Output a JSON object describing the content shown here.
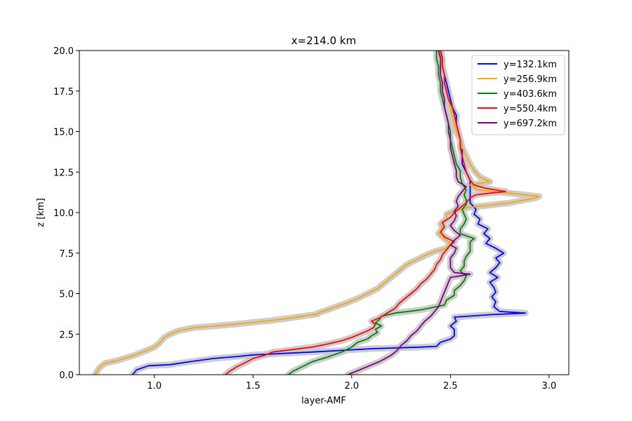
{
  "chart_data": {
    "type": "line",
    "title": "x=214.0 km",
    "xlabel": "layer-AMF",
    "ylabel": "z [km]",
    "xlim": [
      0.62,
      3.1
    ],
    "ylim": [
      0,
      20
    ],
    "xticks": [
      "1.0",
      "1.5",
      "2.0",
      "2.5",
      "3.0"
    ],
    "xtick_values": [
      1.0,
      1.5,
      2.0,
      2.5,
      3.0
    ],
    "yticks": [
      "0.0",
      "2.5",
      "5.0",
      "7.5",
      "10.0",
      "12.5",
      "15.0",
      "17.5",
      "20.0"
    ],
    "ytick_values": [
      0,
      2.5,
      5,
      7.5,
      10,
      12.5,
      15,
      17.5,
      20
    ],
    "legend_position": "top-right",
    "uncertainty_band_color": "#c8c8c8",
    "series": [
      {
        "name": "y=132.1km",
        "color": "#0000ff",
        "points": [
          [
            0.89,
            0
          ],
          [
            0.91,
            0.3
          ],
          [
            0.97,
            0.55
          ],
          [
            1.08,
            0.62
          ],
          [
            1.18,
            0.8
          ],
          [
            1.3,
            1.0
          ],
          [
            1.42,
            1.12
          ],
          [
            1.5,
            1.22
          ],
          [
            1.8,
            1.4
          ],
          [
            2.1,
            1.6
          ],
          [
            2.35,
            1.7
          ],
          [
            2.43,
            1.75
          ],
          [
            2.45,
            2.0
          ],
          [
            2.5,
            2.2
          ],
          [
            2.52,
            2.4
          ],
          [
            2.52,
            2.8
          ],
          [
            2.5,
            3.0
          ],
          [
            2.53,
            3.3
          ],
          [
            2.52,
            3.55
          ],
          [
            2.7,
            3.7
          ],
          [
            2.88,
            3.8
          ],
          [
            2.75,
            3.9
          ],
          [
            2.72,
            4.2
          ],
          [
            2.73,
            4.5
          ],
          [
            2.71,
            4.8
          ],
          [
            2.73,
            5.1
          ],
          [
            2.72,
            5.4
          ],
          [
            2.7,
            5.7
          ],
          [
            2.74,
            6.0
          ],
          [
            2.7,
            6.3
          ],
          [
            2.73,
            6.6
          ],
          [
            2.75,
            6.9
          ],
          [
            2.73,
            7.2
          ],
          [
            2.77,
            7.5
          ],
          [
            2.73,
            7.8
          ],
          [
            2.68,
            8.1
          ],
          [
            2.7,
            8.4
          ],
          [
            2.67,
            8.7
          ],
          [
            2.69,
            9.0
          ],
          [
            2.64,
            9.3
          ],
          [
            2.65,
            9.6
          ],
          [
            2.62,
            9.9
          ],
          [
            2.63,
            10.2
          ],
          [
            2.6,
            10.6
          ],
          [
            2.6,
            11.0
          ],
          [
            2.6,
            11.5
          ],
          [
            2.6,
            12.0
          ],
          [
            2.58,
            12.5
          ],
          [
            2.56,
            13.0
          ],
          [
            2.56,
            13.5
          ],
          [
            2.56,
            14.0
          ],
          [
            2.55,
            14.5
          ],
          [
            2.54,
            15.0
          ],
          [
            2.53,
            15.5
          ],
          [
            2.53,
            16.0
          ],
          [
            2.51,
            16.5
          ],
          [
            2.5,
            17.0
          ],
          [
            2.49,
            17.5
          ],
          [
            2.48,
            18.0
          ],
          [
            2.47,
            18.5
          ],
          [
            2.46,
            19.0
          ],
          [
            2.46,
            19.5
          ],
          [
            2.45,
            20.0
          ]
        ]
      },
      {
        "name": "y=256.9km",
        "color": "#ffa500",
        "points": [
          [
            0.7,
            0
          ],
          [
            0.72,
            0.4
          ],
          [
            0.75,
            0.7
          ],
          [
            0.82,
            0.9
          ],
          [
            0.9,
            1.2
          ],
          [
            0.96,
            1.5
          ],
          [
            1.0,
            1.7
          ],
          [
            1.03,
            2.0
          ],
          [
            1.05,
            2.3
          ],
          [
            1.08,
            2.5
          ],
          [
            1.12,
            2.7
          ],
          [
            1.2,
            2.9
          ],
          [
            1.4,
            3.1
          ],
          [
            1.6,
            3.35
          ],
          [
            1.75,
            3.6
          ],
          [
            1.83,
            3.75
          ],
          [
            1.83,
            3.8
          ],
          [
            1.9,
            4.1
          ],
          [
            1.97,
            4.4
          ],
          [
            2.03,
            4.7
          ],
          [
            2.08,
            5.0
          ],
          [
            2.13,
            5.3
          ],
          [
            2.17,
            5.7
          ],
          [
            2.2,
            6.0
          ],
          [
            2.24,
            6.4
          ],
          [
            2.28,
            6.8
          ],
          [
            2.33,
            7.1
          ],
          [
            2.38,
            7.4
          ],
          [
            2.42,
            7.6
          ],
          [
            2.48,
            7.8
          ],
          [
            2.5,
            8.1
          ],
          [
            2.47,
            8.4
          ],
          [
            2.44,
            8.7
          ],
          [
            2.46,
            9.0
          ],
          [
            2.45,
            9.3
          ],
          [
            2.48,
            9.6
          ],
          [
            2.48,
            9.9
          ],
          [
            2.52,
            10.1
          ],
          [
            2.58,
            10.3
          ],
          [
            2.8,
            10.6
          ],
          [
            2.93,
            10.9
          ],
          [
            2.95,
            11.0
          ],
          [
            2.8,
            11.2
          ],
          [
            2.64,
            11.4
          ],
          [
            2.6,
            11.7
          ],
          [
            2.7,
            11.9
          ],
          [
            2.65,
            12.2
          ],
          [
            2.62,
            12.6
          ],
          [
            2.6,
            13.0
          ],
          [
            2.58,
            13.5
          ],
          [
            2.56,
            14.0
          ],
          [
            2.55,
            14.5
          ],
          [
            2.53,
            15.0
          ],
          [
            2.52,
            15.5
          ],
          [
            2.51,
            16.0
          ],
          [
            2.5,
            16.5
          ],
          [
            2.49,
            17.0
          ],
          [
            2.48,
            17.5
          ],
          [
            2.47,
            18.0
          ],
          [
            2.47,
            18.5
          ],
          [
            2.46,
            19.0
          ],
          [
            2.45,
            19.5
          ],
          [
            2.45,
            20.0
          ]
        ]
      },
      {
        "name": "y=403.6km",
        "color": "#008000",
        "points": [
          [
            1.68,
            0
          ],
          [
            1.7,
            0.2
          ],
          [
            1.75,
            0.5
          ],
          [
            1.8,
            0.8
          ],
          [
            1.88,
            1.1
          ],
          [
            1.95,
            1.4
          ],
          [
            2.0,
            1.7
          ],
          [
            2.03,
            2.0
          ],
          [
            2.08,
            2.2
          ],
          [
            2.1,
            2.4
          ],
          [
            2.13,
            2.6
          ],
          [
            2.12,
            2.8
          ],
          [
            2.15,
            3.0
          ],
          [
            2.12,
            3.2
          ],
          [
            2.14,
            3.4
          ],
          [
            2.15,
            3.6
          ],
          [
            2.22,
            3.8
          ],
          [
            2.35,
            4.0
          ],
          [
            2.47,
            4.3
          ],
          [
            2.48,
            4.6
          ],
          [
            2.52,
            4.9
          ],
          [
            2.52,
            5.2
          ],
          [
            2.55,
            5.5
          ],
          [
            2.57,
            5.8
          ],
          [
            2.58,
            6.1
          ],
          [
            2.55,
            6.4
          ],
          [
            2.57,
            6.7
          ],
          [
            2.57,
            7.0
          ],
          [
            2.58,
            7.3
          ],
          [
            2.6,
            7.6
          ],
          [
            2.6,
            7.9
          ],
          [
            2.6,
            8.2
          ],
          [
            2.62,
            8.4
          ],
          [
            2.55,
            8.7
          ],
          [
            2.55,
            9.0
          ],
          [
            2.57,
            9.3
          ],
          [
            2.58,
            9.6
          ],
          [
            2.57,
            9.9
          ],
          [
            2.56,
            10.2
          ],
          [
            2.58,
            10.5
          ],
          [
            2.58,
            10.8
          ],
          [
            2.57,
            11.1
          ],
          [
            2.58,
            11.4
          ],
          [
            2.56,
            11.8
          ],
          [
            2.55,
            12.2
          ],
          [
            2.55,
            12.6
          ],
          [
            2.53,
            13.0
          ],
          [
            2.52,
            13.5
          ],
          [
            2.51,
            14.0
          ],
          [
            2.5,
            14.5
          ],
          [
            2.5,
            15.0
          ],
          [
            2.49,
            15.5
          ],
          [
            2.48,
            16.0
          ],
          [
            2.47,
            16.5
          ],
          [
            2.46,
            17.0
          ],
          [
            2.45,
            17.5
          ],
          [
            2.45,
            18.0
          ],
          [
            2.44,
            18.5
          ],
          [
            2.44,
            19.0
          ],
          [
            2.43,
            19.5
          ],
          [
            2.43,
            20.0
          ]
        ]
      },
      {
        "name": "y=550.4km",
        "color": "#ff0000",
        "points": [
          [
            1.36,
            0
          ],
          [
            1.38,
            0.2
          ],
          [
            1.42,
            0.5
          ],
          [
            1.47,
            0.8
          ],
          [
            1.5,
            1.0
          ],
          [
            1.56,
            1.2
          ],
          [
            1.6,
            1.4
          ],
          [
            1.7,
            1.55
          ],
          [
            1.8,
            1.7
          ],
          [
            1.88,
            1.9
          ],
          [
            1.95,
            2.1
          ],
          [
            2.0,
            2.3
          ],
          [
            2.04,
            2.5
          ],
          [
            2.08,
            2.7
          ],
          [
            2.11,
            2.9
          ],
          [
            2.12,
            3.1
          ],
          [
            2.1,
            3.3
          ],
          [
            2.14,
            3.5
          ],
          [
            2.18,
            3.8
          ],
          [
            2.22,
            4.1
          ],
          [
            2.24,
            4.4
          ],
          [
            2.27,
            4.7
          ],
          [
            2.3,
            5.0
          ],
          [
            2.33,
            5.3
          ],
          [
            2.35,
            5.6
          ],
          [
            2.38,
            5.9
          ],
          [
            2.4,
            6.2
          ],
          [
            2.42,
            6.5
          ],
          [
            2.43,
            6.8
          ],
          [
            2.45,
            7.1
          ],
          [
            2.46,
            7.4
          ],
          [
            2.48,
            7.7
          ],
          [
            2.5,
            8.0
          ],
          [
            2.52,
            8.2
          ],
          [
            2.47,
            8.5
          ],
          [
            2.45,
            8.8
          ],
          [
            2.47,
            9.1
          ],
          [
            2.46,
            9.4
          ],
          [
            2.5,
            9.7
          ],
          [
            2.52,
            10.0
          ],
          [
            2.55,
            10.3
          ],
          [
            2.58,
            10.6
          ],
          [
            2.6,
            10.9
          ],
          [
            2.63,
            11.1
          ],
          [
            2.7,
            11.2
          ],
          [
            2.78,
            11.3
          ],
          [
            2.68,
            11.5
          ],
          [
            2.62,
            11.7
          ],
          [
            2.6,
            12.0
          ],
          [
            2.58,
            12.5
          ],
          [
            2.57,
            13.0
          ],
          [
            2.56,
            13.5
          ],
          [
            2.55,
            14.0
          ],
          [
            2.55,
            14.5
          ],
          [
            2.54,
            15.0
          ],
          [
            2.53,
            15.5
          ],
          [
            2.52,
            16.0
          ],
          [
            2.51,
            16.5
          ],
          [
            2.49,
            17.0
          ],
          [
            2.48,
            17.5
          ],
          [
            2.47,
            18.0
          ],
          [
            2.47,
            18.5
          ],
          [
            2.46,
            19.0
          ],
          [
            2.46,
            19.5
          ],
          [
            2.45,
            20.0
          ]
        ]
      },
      {
        "name": "y=697.2km",
        "color": "#800080",
        "points": [
          [
            1.98,
            0
          ],
          [
            2.02,
            0.2
          ],
          [
            2.06,
            0.4
          ],
          [
            2.1,
            0.6
          ],
          [
            2.14,
            0.8
          ],
          [
            2.17,
            1.0
          ],
          [
            2.2,
            1.2
          ],
          [
            2.23,
            1.5
          ],
          [
            2.25,
            1.8
          ],
          [
            2.28,
            2.1
          ],
          [
            2.3,
            2.4
          ],
          [
            2.33,
            2.7
          ],
          [
            2.35,
            3.0
          ],
          [
            2.37,
            3.3
          ],
          [
            2.4,
            3.6
          ],
          [
            2.42,
            3.9
          ],
          [
            2.44,
            4.2
          ],
          [
            2.45,
            4.5
          ],
          [
            2.46,
            4.8
          ],
          [
            2.47,
            5.1
          ],
          [
            2.48,
            5.4
          ],
          [
            2.49,
            5.7
          ],
          [
            2.5,
            6.0
          ],
          [
            2.6,
            6.2
          ],
          [
            2.52,
            6.3
          ],
          [
            2.5,
            6.6
          ],
          [
            2.5,
            6.9
          ],
          [
            2.5,
            7.2
          ],
          [
            2.52,
            7.5
          ],
          [
            2.53,
            7.8
          ],
          [
            2.5,
            8.0
          ],
          [
            2.52,
            8.3
          ],
          [
            2.55,
            8.6
          ],
          [
            2.52,
            8.9
          ],
          [
            2.5,
            9.2
          ],
          [
            2.52,
            9.5
          ],
          [
            2.53,
            9.8
          ],
          [
            2.52,
            10.1
          ],
          [
            2.54,
            10.4
          ],
          [
            2.53,
            10.7
          ],
          [
            2.54,
            11.0
          ],
          [
            2.56,
            11.3
          ],
          [
            2.58,
            11.6
          ],
          [
            2.54,
            11.9
          ],
          [
            2.53,
            12.2
          ],
          [
            2.53,
            12.6
          ],
          [
            2.52,
            13.0
          ],
          [
            2.51,
            13.5
          ],
          [
            2.5,
            14.0
          ],
          [
            2.5,
            14.5
          ],
          [
            2.49,
            15.0
          ],
          [
            2.49,
            15.5
          ],
          [
            2.48,
            16.0
          ],
          [
            2.47,
            16.5
          ],
          [
            2.47,
            17.0
          ],
          [
            2.46,
            17.5
          ],
          [
            2.46,
            18.0
          ],
          [
            2.45,
            18.5
          ],
          [
            2.45,
            19.0
          ],
          [
            2.45,
            19.5
          ],
          [
            2.44,
            20.0
          ]
        ]
      }
    ]
  }
}
